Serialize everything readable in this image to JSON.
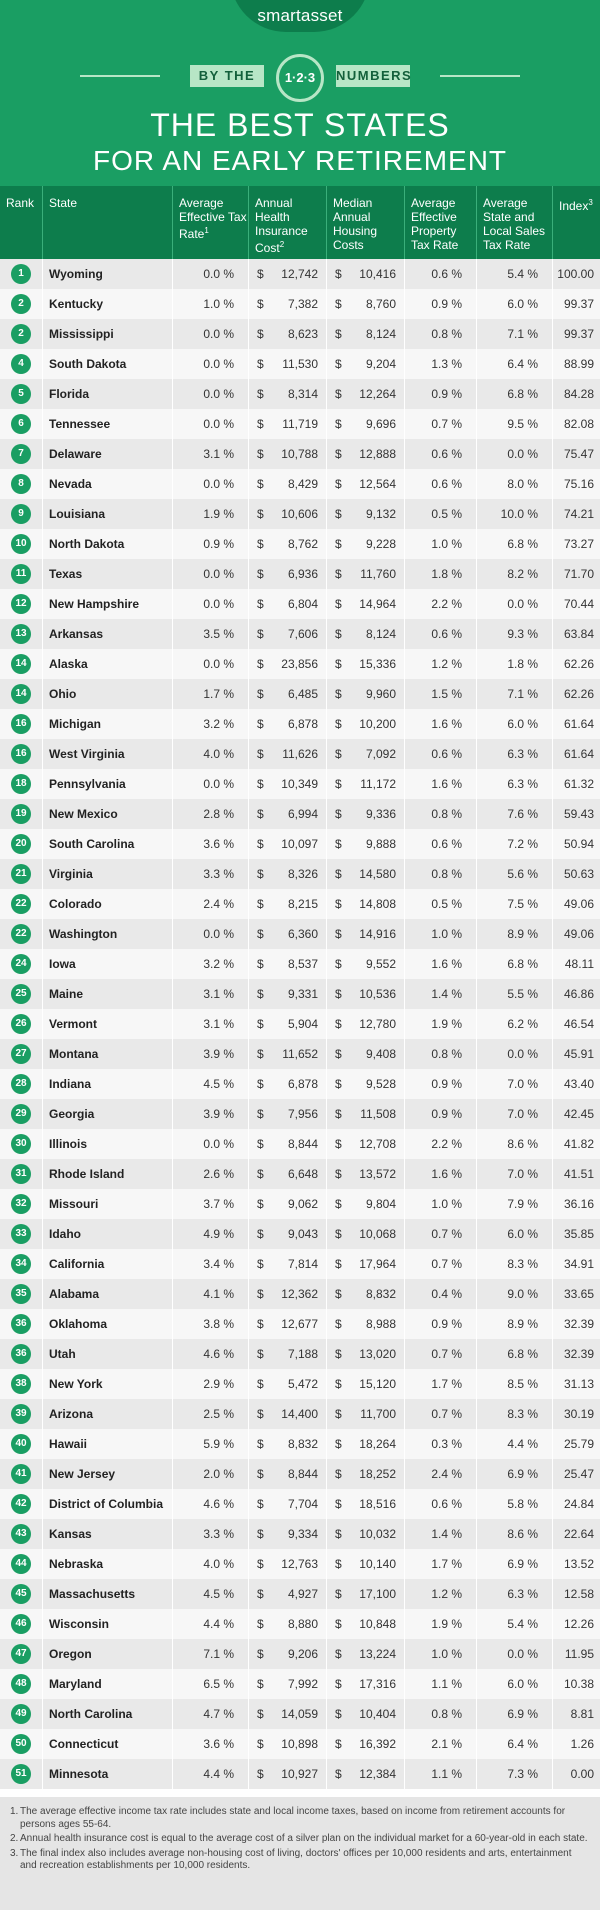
{
  "brand": "smartasset",
  "banner": {
    "left": "BY THE",
    "middle": "1·2·3",
    "right": "NUMBERS"
  },
  "title": {
    "line1": "THE BEST STATES",
    "line2": "FOR AN EARLY RETIREMENT"
  },
  "columns": [
    {
      "label": "Rank",
      "sup": ""
    },
    {
      "label": "State",
      "sup": ""
    },
    {
      "label": "Average Effective Tax Rate",
      "sup": "1"
    },
    {
      "label": "Annual Health Insurance Cost",
      "sup": "2"
    },
    {
      "label": "Median Annual Housing Costs",
      "sup": ""
    },
    {
      "label": "Average Effective Property Tax Rate",
      "sup": ""
    },
    {
      "label": "Average State and Local Sales Tax Rate",
      "sup": ""
    },
    {
      "label": "Index",
      "sup": "3"
    }
  ],
  "rows": [
    {
      "rank": "1",
      "state": "Wyoming",
      "tax": "0.0 %",
      "health": "12,742",
      "housing": "10,416",
      "property": "0.6 %",
      "sales": "5.4 %",
      "index": "100.00"
    },
    {
      "rank": "2",
      "state": "Kentucky",
      "tax": "1.0 %",
      "health": "7,382",
      "housing": "8,760",
      "property": "0.9 %",
      "sales": "6.0 %",
      "index": "99.37"
    },
    {
      "rank": "2",
      "state": "Mississippi",
      "tax": "0.0 %",
      "health": "8,623",
      "housing": "8,124",
      "property": "0.8 %",
      "sales": "7.1 %",
      "index": "99.37"
    },
    {
      "rank": "4",
      "state": "South Dakota",
      "tax": "0.0 %",
      "health": "11,530",
      "housing": "9,204",
      "property": "1.3 %",
      "sales": "6.4 %",
      "index": "88.99"
    },
    {
      "rank": "5",
      "state": "Florida",
      "tax": "0.0 %",
      "health": "8,314",
      "housing": "12,264",
      "property": "0.9 %",
      "sales": "6.8 %",
      "index": "84.28"
    },
    {
      "rank": "6",
      "state": "Tennessee",
      "tax": "0.0 %",
      "health": "11,719",
      "housing": "9,696",
      "property": "0.7 %",
      "sales": "9.5 %",
      "index": "82.08"
    },
    {
      "rank": "7",
      "state": "Delaware",
      "tax": "3.1 %",
      "health": "10,788",
      "housing": "12,888",
      "property": "0.6 %",
      "sales": "0.0 %",
      "index": "75.47"
    },
    {
      "rank": "8",
      "state": "Nevada",
      "tax": "0.0 %",
      "health": "8,429",
      "housing": "12,564",
      "property": "0.6 %",
      "sales": "8.0 %",
      "index": "75.16"
    },
    {
      "rank": "9",
      "state": "Louisiana",
      "tax": "1.9 %",
      "health": "10,606",
      "housing": "9,132",
      "property": "0.5 %",
      "sales": "10.0 %",
      "index": "74.21"
    },
    {
      "rank": "10",
      "state": "North Dakota",
      "tax": "0.9 %",
      "health": "8,762",
      "housing": "9,228",
      "property": "1.0 %",
      "sales": "6.8 %",
      "index": "73.27"
    },
    {
      "rank": "11",
      "state": "Texas",
      "tax": "0.0 %",
      "health": "6,936",
      "housing": "11,760",
      "property": "1.8 %",
      "sales": "8.2 %",
      "index": "71.70"
    },
    {
      "rank": "12",
      "state": "New Hampshire",
      "tax": "0.0 %",
      "health": "6,804",
      "housing": "14,964",
      "property": "2.2 %",
      "sales": "0.0 %",
      "index": "70.44"
    },
    {
      "rank": "13",
      "state": "Arkansas",
      "tax": "3.5 %",
      "health": "7,606",
      "housing": "8,124",
      "property": "0.6 %",
      "sales": "9.3 %",
      "index": "63.84"
    },
    {
      "rank": "14",
      "state": "Alaska",
      "tax": "0.0 %",
      "health": "23,856",
      "housing": "15,336",
      "property": "1.2 %",
      "sales": "1.8 %",
      "index": "62.26"
    },
    {
      "rank": "14",
      "state": "Ohio",
      "tax": "1.7 %",
      "health": "6,485",
      "housing": "9,960",
      "property": "1.5 %",
      "sales": "7.1 %",
      "index": "62.26"
    },
    {
      "rank": "16",
      "state": "Michigan",
      "tax": "3.2 %",
      "health": "6,878",
      "housing": "10,200",
      "property": "1.6 %",
      "sales": "6.0 %",
      "index": "61.64"
    },
    {
      "rank": "16",
      "state": "West Virginia",
      "tax": "4.0 %",
      "health": "11,626",
      "housing": "7,092",
      "property": "0.6 %",
      "sales": "6.3 %",
      "index": "61.64"
    },
    {
      "rank": "18",
      "state": "Pennsylvania",
      "tax": "0.0 %",
      "health": "10,349",
      "housing": "11,172",
      "property": "1.6 %",
      "sales": "6.3 %",
      "index": "61.32"
    },
    {
      "rank": "19",
      "state": "New Mexico",
      "tax": "2.8 %",
      "health": "6,994",
      "housing": "9,336",
      "property": "0.8 %",
      "sales": "7.6 %",
      "index": "59.43"
    },
    {
      "rank": "20",
      "state": "South Carolina",
      "tax": "3.6 %",
      "health": "10,097",
      "housing": "9,888",
      "property": "0.6 %",
      "sales": "7.2 %",
      "index": "50.94"
    },
    {
      "rank": "21",
      "state": "Virginia",
      "tax": "3.3 %",
      "health": "8,326",
      "housing": "14,580",
      "property": "0.8 %",
      "sales": "5.6 %",
      "index": "50.63"
    },
    {
      "rank": "22",
      "state": "Colorado",
      "tax": "2.4 %",
      "health": "8,215",
      "housing": "14,808",
      "property": "0.5 %",
      "sales": "7.5 %",
      "index": "49.06"
    },
    {
      "rank": "22",
      "state": "Washington",
      "tax": "0.0 %",
      "health": "6,360",
      "housing": "14,916",
      "property": "1.0 %",
      "sales": "8.9 %",
      "index": "49.06"
    },
    {
      "rank": "24",
      "state": "Iowa",
      "tax": "3.2 %",
      "health": "8,537",
      "housing": "9,552",
      "property": "1.6 %",
      "sales": "6.8 %",
      "index": "48.11"
    },
    {
      "rank": "25",
      "state": "Maine",
      "tax": "3.1 %",
      "health": "9,331",
      "housing": "10,536",
      "property": "1.4 %",
      "sales": "5.5 %",
      "index": "46.86"
    },
    {
      "rank": "26",
      "state": "Vermont",
      "tax": "3.1 %",
      "health": "5,904",
      "housing": "12,780",
      "property": "1.9 %",
      "sales": "6.2 %",
      "index": "46.54"
    },
    {
      "rank": "27",
      "state": "Montana",
      "tax": "3.9 %",
      "health": "11,652",
      "housing": "9,408",
      "property": "0.8 %",
      "sales": "0.0 %",
      "index": "45.91"
    },
    {
      "rank": "28",
      "state": "Indiana",
      "tax": "4.5 %",
      "health": "6,878",
      "housing": "9,528",
      "property": "0.9 %",
      "sales": "7.0 %",
      "index": "43.40"
    },
    {
      "rank": "29",
      "state": "Georgia",
      "tax": "3.9 %",
      "health": "7,956",
      "housing": "11,508",
      "property": "0.9 %",
      "sales": "7.0 %",
      "index": "42.45"
    },
    {
      "rank": "30",
      "state": "Illinois",
      "tax": "0.0 %",
      "health": "8,844",
      "housing": "12,708",
      "property": "2.2 %",
      "sales": "8.6 %",
      "index": "41.82"
    },
    {
      "rank": "31",
      "state": "Rhode Island",
      "tax": "2.6 %",
      "health": "6,648",
      "housing": "13,572",
      "property": "1.6 %",
      "sales": "7.0 %",
      "index": "41.51"
    },
    {
      "rank": "32",
      "state": "Missouri",
      "tax": "3.7 %",
      "health": "9,062",
      "housing": "9,804",
      "property": "1.0 %",
      "sales": "7.9 %",
      "index": "36.16"
    },
    {
      "rank": "33",
      "state": "Idaho",
      "tax": "4.9 %",
      "health": "9,043",
      "housing": "10,068",
      "property": "0.7 %",
      "sales": "6.0 %",
      "index": "35.85"
    },
    {
      "rank": "34",
      "state": "California",
      "tax": "3.4 %",
      "health": "7,814",
      "housing": "17,964",
      "property": "0.7 %",
      "sales": "8.3 %",
      "index": "34.91"
    },
    {
      "rank": "35",
      "state": "Alabama",
      "tax": "4.1 %",
      "health": "12,362",
      "housing": "8,832",
      "property": "0.4 %",
      "sales": "9.0 %",
      "index": "33.65"
    },
    {
      "rank": "36",
      "state": "Oklahoma",
      "tax": "3.8 %",
      "health": "12,677",
      "housing": "8,988",
      "property": "0.9 %",
      "sales": "8.9 %",
      "index": "32.39"
    },
    {
      "rank": "36",
      "state": "Utah",
      "tax": "4.6 %",
      "health": "7,188",
      "housing": "13,020",
      "property": "0.7 %",
      "sales": "6.8 %",
      "index": "32.39"
    },
    {
      "rank": "38",
      "state": "New York",
      "tax": "2.9 %",
      "health": "5,472",
      "housing": "15,120",
      "property": "1.7 %",
      "sales": "8.5 %",
      "index": "31.13"
    },
    {
      "rank": "39",
      "state": "Arizona",
      "tax": "2.5 %",
      "health": "14,400",
      "housing": "11,700",
      "property": "0.7 %",
      "sales": "8.3 %",
      "index": "30.19"
    },
    {
      "rank": "40",
      "state": "Hawaii",
      "tax": "5.9 %",
      "health": "8,832",
      "housing": "18,264",
      "property": "0.3 %",
      "sales": "4.4 %",
      "index": "25.79"
    },
    {
      "rank": "41",
      "state": "New Jersey",
      "tax": "2.0 %",
      "health": "8,844",
      "housing": "18,252",
      "property": "2.4 %",
      "sales": "6.9 %",
      "index": "25.47"
    },
    {
      "rank": "42",
      "state": "District of Columbia",
      "tax": "4.6 %",
      "health": "7,704",
      "housing": "18,516",
      "property": "0.6 %",
      "sales": "5.8 %",
      "index": "24.84"
    },
    {
      "rank": "43",
      "state": "Kansas",
      "tax": "3.3 %",
      "health": "9,334",
      "housing": "10,032",
      "property": "1.4 %",
      "sales": "8.6 %",
      "index": "22.64"
    },
    {
      "rank": "44",
      "state": "Nebraska",
      "tax": "4.0 %",
      "health": "12,763",
      "housing": "10,140",
      "property": "1.7 %",
      "sales": "6.9 %",
      "index": "13.52"
    },
    {
      "rank": "45",
      "state": "Massachusetts",
      "tax": "4.5 %",
      "health": "4,927",
      "housing": "17,100",
      "property": "1.2 %",
      "sales": "6.3 %",
      "index": "12.58"
    },
    {
      "rank": "46",
      "state": "Wisconsin",
      "tax": "4.4 %",
      "health": "8,880",
      "housing": "10,848",
      "property": "1.9 %",
      "sales": "5.4 %",
      "index": "12.26"
    },
    {
      "rank": "47",
      "state": "Oregon",
      "tax": "7.1 %",
      "health": "9,206",
      "housing": "13,224",
      "property": "1.0 %",
      "sales": "0.0 %",
      "index": "11.95"
    },
    {
      "rank": "48",
      "state": "Maryland",
      "tax": "6.5 %",
      "health": "7,992",
      "housing": "17,316",
      "property": "1.1 %",
      "sales": "6.0 %",
      "index": "10.38"
    },
    {
      "rank": "49",
      "state": "North Carolina",
      "tax": "4.7 %",
      "health": "14,059",
      "housing": "10,404",
      "property": "0.8 %",
      "sales": "6.9 %",
      "index": "8.81"
    },
    {
      "rank": "50",
      "state": "Connecticut",
      "tax": "3.6 %",
      "health": "10,898",
      "housing": "16,392",
      "property": "2.1 %",
      "sales": "6.4 %",
      "index": "1.26"
    },
    {
      "rank": "51",
      "state": "Minnesota",
      "tax": "4.4 %",
      "health": "10,927",
      "housing": "12,384",
      "property": "1.1 %",
      "sales": "7.3 %",
      "index": "0.00"
    }
  ],
  "footnotes": [
    {
      "num": "1.",
      "text": "The average effective income tax rate includes state and local income taxes, based on income from retirement accounts for persons ages 55-64."
    },
    {
      "num": "2.",
      "text": "Annual health insurance cost is equal to the average cost of a silver plan on the individual market for a 60-year-old in each state."
    },
    {
      "num": "3.",
      "text": "The final index also includes average non-housing cost of living, doctors' offices per 10,000 residents and arts, entertainment and recreation establishments per 10,000 residents."
    }
  ],
  "colors": {
    "green": "#1a9e63",
    "dark_green": "#0d7d4c",
    "light_green": "#b7e6c6",
    "row_even": "#e9e9e9",
    "row_odd": "#f7f7f7"
  }
}
